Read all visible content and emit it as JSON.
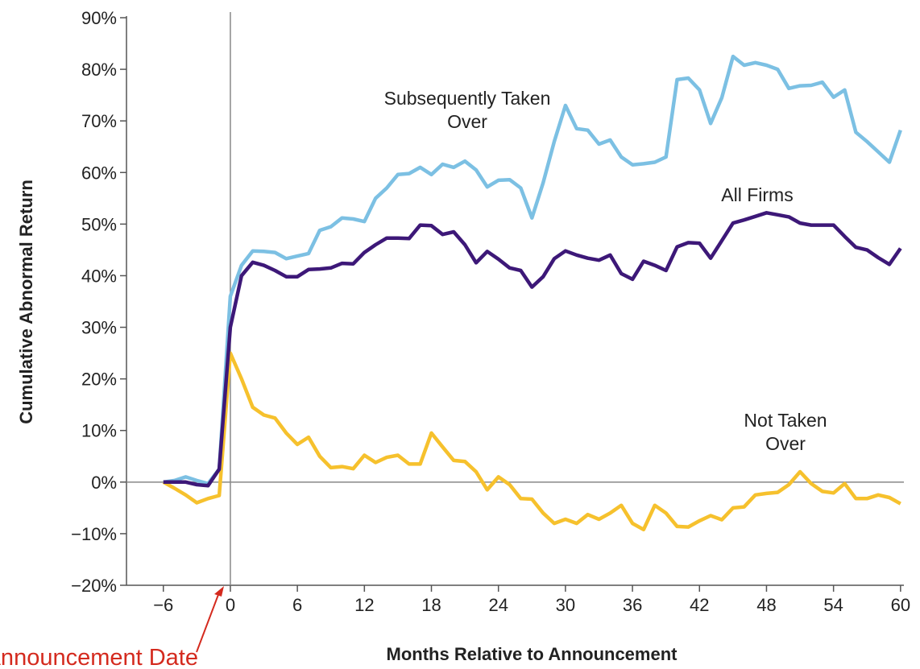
{
  "chart_data": {
    "type": "line",
    "xlabel": "Months Relative to Announcement",
    "ylabel": "Cumulative Abnormal Return",
    "annotation": "Announcement Date",
    "x": [
      -6,
      -5,
      -4,
      -3,
      -2,
      -1,
      0,
      1,
      2,
      3,
      4,
      5,
      6,
      7,
      8,
      9,
      10,
      11,
      12,
      13,
      14,
      15,
      16,
      17,
      18,
      19,
      20,
      21,
      22,
      23,
      24,
      25,
      26,
      27,
      28,
      29,
      30,
      31,
      32,
      33,
      34,
      35,
      36,
      37,
      38,
      39,
      40,
      41,
      42,
      43,
      44,
      45,
      46,
      47,
      48,
      49,
      50,
      51,
      52,
      53,
      54,
      55,
      56,
      57,
      58,
      59,
      60
    ],
    "series": [
      {
        "name": "All Firms",
        "color": "#3d1878",
        "values": [
          0,
          0,
          0,
          -0.5,
          -0.7,
          2.5,
          30,
          40,
          42.6,
          42,
          41,
          39.8,
          39.8,
          41.2,
          41.3,
          41.5,
          42.4,
          42.3,
          44.5,
          46,
          47.3,
          47.3,
          47.2,
          49.8,
          49.7,
          48,
          48.5,
          46,
          42.5,
          44.7,
          43.2,
          41.5,
          41,
          37.8,
          39.8,
          43.3,
          44.8,
          44,
          43.4,
          43,
          44,
          40.4,
          39.3,
          42.8,
          42,
          41,
          45.6,
          46.4,
          46.3,
          43.4,
          46.8,
          50.2,
          50.8,
          51.5,
          52.2,
          51.8,
          51.4,
          50.2,
          49.8,
          49.8,
          49.8,
          47.6,
          45.5,
          45,
          43.5,
          42.2,
          45.3
        ]
      },
      {
        "name": "Subsequently Taken Over",
        "color": "#7cc0e3",
        "values": [
          0,
          0.3,
          1,
          0.3,
          -0.3,
          2.5,
          36,
          42,
          44.8,
          44.7,
          44.5,
          43.3,
          43.8,
          44.3,
          48.8,
          49.5,
          51.2,
          51,
          50.5,
          55,
          57,
          59.6,
          59.8,
          61,
          59.6,
          61.6,
          61,
          62.2,
          60.5,
          57.2,
          58.5,
          58.6,
          57,
          51.2,
          58,
          66,
          73,
          68.5,
          68.2,
          65.5,
          66.3,
          63,
          61.5,
          61.7,
          62,
          63,
          78,
          78.3,
          76,
          69.5,
          74.5,
          82.5,
          80.8,
          81.3,
          80.8,
          80,
          76.3,
          76.8,
          76.9,
          77.5,
          74.6,
          76,
          67.8,
          66,
          64,
          62,
          68.2
        ]
      },
      {
        "name": "Not Taken Over",
        "color": "#f6c12d",
        "values": [
          0,
          -1.2,
          -2.5,
          -4,
          -3.2,
          -2.6,
          25,
          20,
          14.5,
          13,
          12.4,
          9.5,
          7.3,
          8.7,
          5,
          2.8,
          3,
          2.6,
          5.2,
          3.8,
          4.8,
          5.2,
          3.5,
          3.5,
          9.5,
          6.8,
          4.2,
          4,
          2,
          -1.5,
          1,
          -0.5,
          -3.2,
          -3.3,
          -6,
          -8,
          -7.2,
          -8,
          -6.3,
          -7.2,
          -6,
          -4.5,
          -8,
          -9.2,
          -4.5,
          -6,
          -8.6,
          -8.7,
          -7.5,
          -6.5,
          -7.3,
          -5,
          -4.8,
          -2.5,
          -2.2,
          -2,
          -0.5,
          2,
          -0.3,
          -1.8,
          -2.1,
          -0.3,
          -3.2,
          -3.2,
          -2.5,
          -3,
          -4.2
        ]
      }
    ],
    "xlim": [
      -9.3,
      60.3
    ],
    "ylim": [
      -20,
      90
    ],
    "xticks": [
      {
        "value": -6,
        "label": "−6"
      },
      0,
      6,
      12,
      18,
      24,
      30,
      36,
      42,
      48,
      54,
      60
    ],
    "yticks": [
      {
        "value": -20,
        "label": "−20%"
      },
      {
        "value": -10,
        "label": "−10%"
      },
      {
        "value": 0,
        "label": "0%"
      },
      {
        "value": 10,
        "label": "10%"
      },
      {
        "value": 20,
        "label": "20%"
      },
      {
        "value": 30,
        "label": "30%"
      },
      {
        "value": 40,
        "label": "40%"
      },
      {
        "value": 50,
        "label": "50%"
      },
      {
        "value": 60,
        "label": "60%"
      },
      {
        "value": 70,
        "label": "70%"
      },
      {
        "value": 80,
        "label": "80%"
      },
      {
        "value": 90,
        "label": "90%"
      }
    ],
    "reference_lines": {
      "x": 0,
      "y": 0
    },
    "annotation_color": "#d42a1e"
  }
}
